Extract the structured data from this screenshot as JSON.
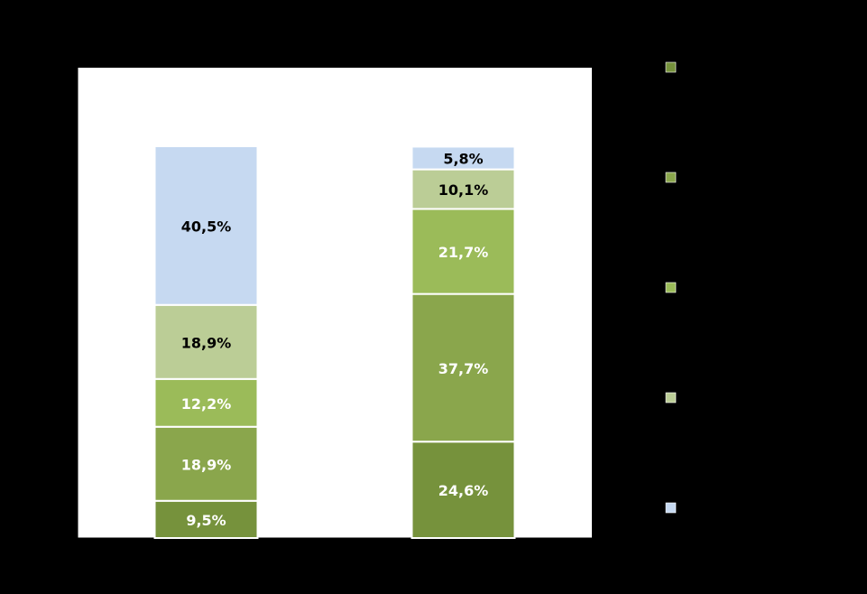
{
  "chart_data": {
    "type": "bar",
    "stacked": true,
    "orientation": "vertical",
    "categories": [
      "",
      ""
    ],
    "ylim": [
      0,
      100
    ],
    "grid": false,
    "legend_position": "right",
    "series": [
      {
        "color": "#76923C",
        "label_color": "#FFFFFF",
        "values": [
          9.5,
          24.6
        ],
        "labels": [
          "9,5%",
          "24,6%"
        ]
      },
      {
        "color": "#8AA64C",
        "label_color": "#FFFFFF",
        "values": [
          18.9,
          37.7
        ],
        "labels": [
          "18,9%",
          "37,7%"
        ]
      },
      {
        "color": "#9BBB59",
        "label_color": "#FFFFFF",
        "values": [
          12.2,
          21.7
        ],
        "labels": [
          "12,2%",
          "21,7%"
        ]
      },
      {
        "color": "#BBCD96",
        "label_color": "#000000",
        "values": [
          18.9,
          10.1
        ],
        "labels": [
          "18,9%",
          "10,1%"
        ]
      },
      {
        "color": "#C6D9F1",
        "label_color": "#000000",
        "values": [
          40.5,
          5.8
        ],
        "labels": [
          "40,5%",
          "5,8%"
        ]
      }
    ],
    "legend_order": [
      0,
      1,
      2,
      3,
      4
    ]
  }
}
